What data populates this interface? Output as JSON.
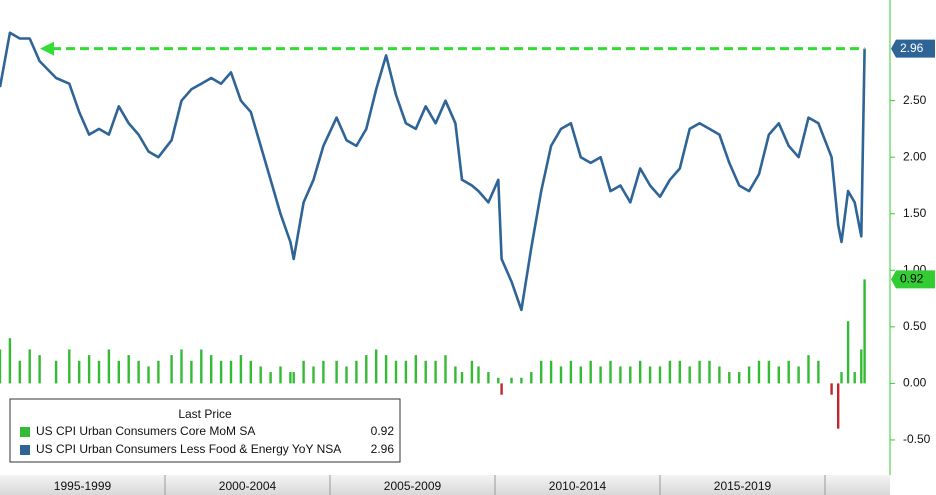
{
  "chart_data": {
    "type": "bar_line",
    "legend_title": "Last Price",
    "xlim": [
      1995,
      2021.97
    ],
    "xticks": [
      2000,
      2005,
      2010,
      2015,
      2020
    ],
    "period_labels": [
      "1995-1999",
      "2000-2004",
      "2005-2009",
      "2010-2014",
      "2015-2019"
    ],
    "ylim": [
      -0.81,
      3.39
    ],
    "yticks": [
      {
        "value": -0.5,
        "label": "-0.50"
      },
      {
        "value": 0,
        "label": "0.00"
      },
      {
        "value": 0.5,
        "label": "0.50"
      },
      {
        "value": 1,
        "label": "1.00"
      },
      {
        "value": 1.5,
        "label": "1.50"
      },
      {
        "value": 2,
        "label": "2.00"
      },
      {
        "value": 2.5,
        "label": "2.50"
      }
    ],
    "x": [
      1995.0,
      1995.3,
      1995.6,
      1995.9,
      1996.2,
      1996.7,
      1997.1,
      1997.4,
      1997.7,
      1998.0,
      1998.3,
      1998.6,
      1998.9,
      1999.2,
      1999.5,
      1999.8,
      2000.2,
      2000.5,
      2000.8,
      2001.1,
      2001.4,
      2001.7,
      2002.0,
      2002.3,
      2002.6,
      2002.9,
      2003.2,
      2003.5,
      2003.8,
      2003.9,
      2004.2,
      2004.5,
      2004.8,
      2005.2,
      2005.5,
      2005.8,
      2006.1,
      2006.4,
      2006.7,
      2007.0,
      2007.3,
      2007.6,
      2007.9,
      2008.2,
      2008.5,
      2008.8,
      2009.0,
      2009.3,
      2009.5,
      2009.8,
      2010.1,
      2010.2,
      2010.5,
      2010.8,
      2011.1,
      2011.4,
      2011.7,
      2012.0,
      2012.3,
      2012.6,
      2012.9,
      2013.2,
      2013.5,
      2013.8,
      2014.1,
      2014.4,
      2014.7,
      2015.0,
      2015.3,
      2015.6,
      2015.9,
      2016.2,
      2016.5,
      2016.8,
      2017.1,
      2017.4,
      2017.7,
      2018.0,
      2018.3,
      2018.6,
      2018.9,
      2019.2,
      2019.5,
      2019.8,
      2020.2,
      2020.4,
      2020.5,
      2020.7,
      2020.9,
      2021.1,
      2021.2
    ],
    "series": [
      {
        "name": "US CPI Urban Consumers Core MoM SA",
        "kind": "bar",
        "color": "#33bb33",
        "negative_color": "#c0262b",
        "values": [
          0.3,
          0.4,
          0.2,
          0.3,
          0.25,
          0.2,
          0.3,
          0.2,
          0.25,
          0.2,
          0.3,
          0.2,
          0.25,
          0.2,
          0.15,
          0.2,
          0.25,
          0.3,
          0.2,
          0.3,
          0.25,
          0.2,
          0.2,
          0.25,
          0.2,
          0.15,
          0.1,
          0.15,
          0.1,
          0.1,
          0.2,
          0.15,
          0.2,
          0.2,
          0.15,
          0.2,
          0.25,
          0.3,
          0.25,
          0.2,
          0.2,
          0.25,
          0.2,
          0.2,
          0.25,
          0.15,
          0.1,
          0.2,
          0.15,
          0.1,
          0.05,
          -0.1,
          0.05,
          0.05,
          0.1,
          0.2,
          0.2,
          0.15,
          0.2,
          0.15,
          0.2,
          0.15,
          0.2,
          0.15,
          0.15,
          0.2,
          0.15,
          0.15,
          0.2,
          0.2,
          0.15,
          0.2,
          0.2,
          0.15,
          0.1,
          0.1,
          0.15,
          0.2,
          0.2,
          0.15,
          0.2,
          0.15,
          0.25,
          0.2,
          -0.1,
          -0.4,
          0.1,
          0.55,
          0.1,
          0.3,
          0.92
        ]
      },
      {
        "name": "US CPI Urban Consumers Less Food & Energy YoY NSA",
        "kind": "line",
        "color": "#2f6497",
        "values": [
          2.62,
          3.1,
          3.05,
          3.05,
          2.85,
          2.7,
          2.65,
          2.4,
          2.2,
          2.25,
          2.2,
          2.45,
          2.3,
          2.2,
          2.05,
          2.0,
          2.15,
          2.5,
          2.6,
          2.65,
          2.7,
          2.65,
          2.75,
          2.5,
          2.4,
          2.1,
          1.8,
          1.5,
          1.25,
          1.1,
          1.6,
          1.8,
          2.1,
          2.35,
          2.15,
          2.1,
          2.25,
          2.6,
          2.9,
          2.55,
          2.3,
          2.25,
          2.45,
          2.3,
          2.5,
          2.3,
          1.8,
          1.75,
          1.7,
          1.6,
          1.8,
          1.1,
          0.9,
          0.65,
          1.2,
          1.7,
          2.1,
          2.25,
          2.3,
          2.0,
          1.95,
          2.0,
          1.7,
          1.75,
          1.6,
          1.9,
          1.75,
          1.65,
          1.8,
          1.9,
          2.25,
          2.3,
          2.25,
          2.2,
          1.95,
          1.75,
          1.7,
          1.85,
          2.2,
          2.3,
          2.1,
          2.0,
          2.35,
          2.3,
          2.0,
          1.4,
          1.25,
          1.7,
          1.6,
          1.3,
          2.96
        ]
      }
    ]
  }
}
